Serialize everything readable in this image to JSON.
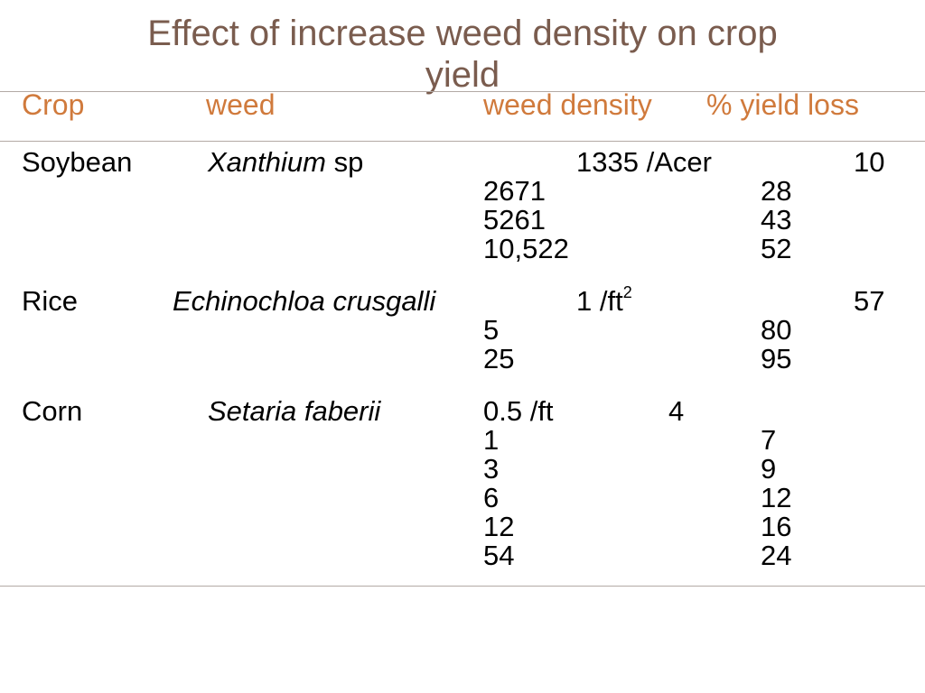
{
  "title": {
    "line1": "Effect of increase weed density on crop",
    "line2": "yield"
  },
  "headers": {
    "crop": "Crop",
    "weed": "weed",
    "weed_density": "weed density",
    "yield_loss": "% yield  loss"
  },
  "soybean": {
    "crop": "Soybean",
    "weed_italic": "Xanthium",
    "weed_suffix": " sp",
    "first_density": "1335 /Acer",
    "first_loss": "10",
    "densities": [
      "2671",
      "5261",
      "10,522"
    ],
    "losses": [
      "28",
      "43",
      "52"
    ]
  },
  "rice": {
    "crop": "Rice",
    "weed_italic": "Echinochloa crusgalli",
    "first_density": "1 /ft",
    "first_density_sup": "2",
    "first_loss": "57",
    "densities": [
      "5",
      "25"
    ],
    "losses": [
      "80",
      "95"
    ]
  },
  "corn": {
    "crop": "Corn",
    "weed_italic": "Setaria faberii",
    "first_density": "0.5 /ft",
    "first_loss": "4",
    "densities": [
      "1",
      "3",
      "6",
      "12",
      "54"
    ],
    "losses": [
      "7",
      "9",
      "12",
      "16",
      "24"
    ]
  }
}
